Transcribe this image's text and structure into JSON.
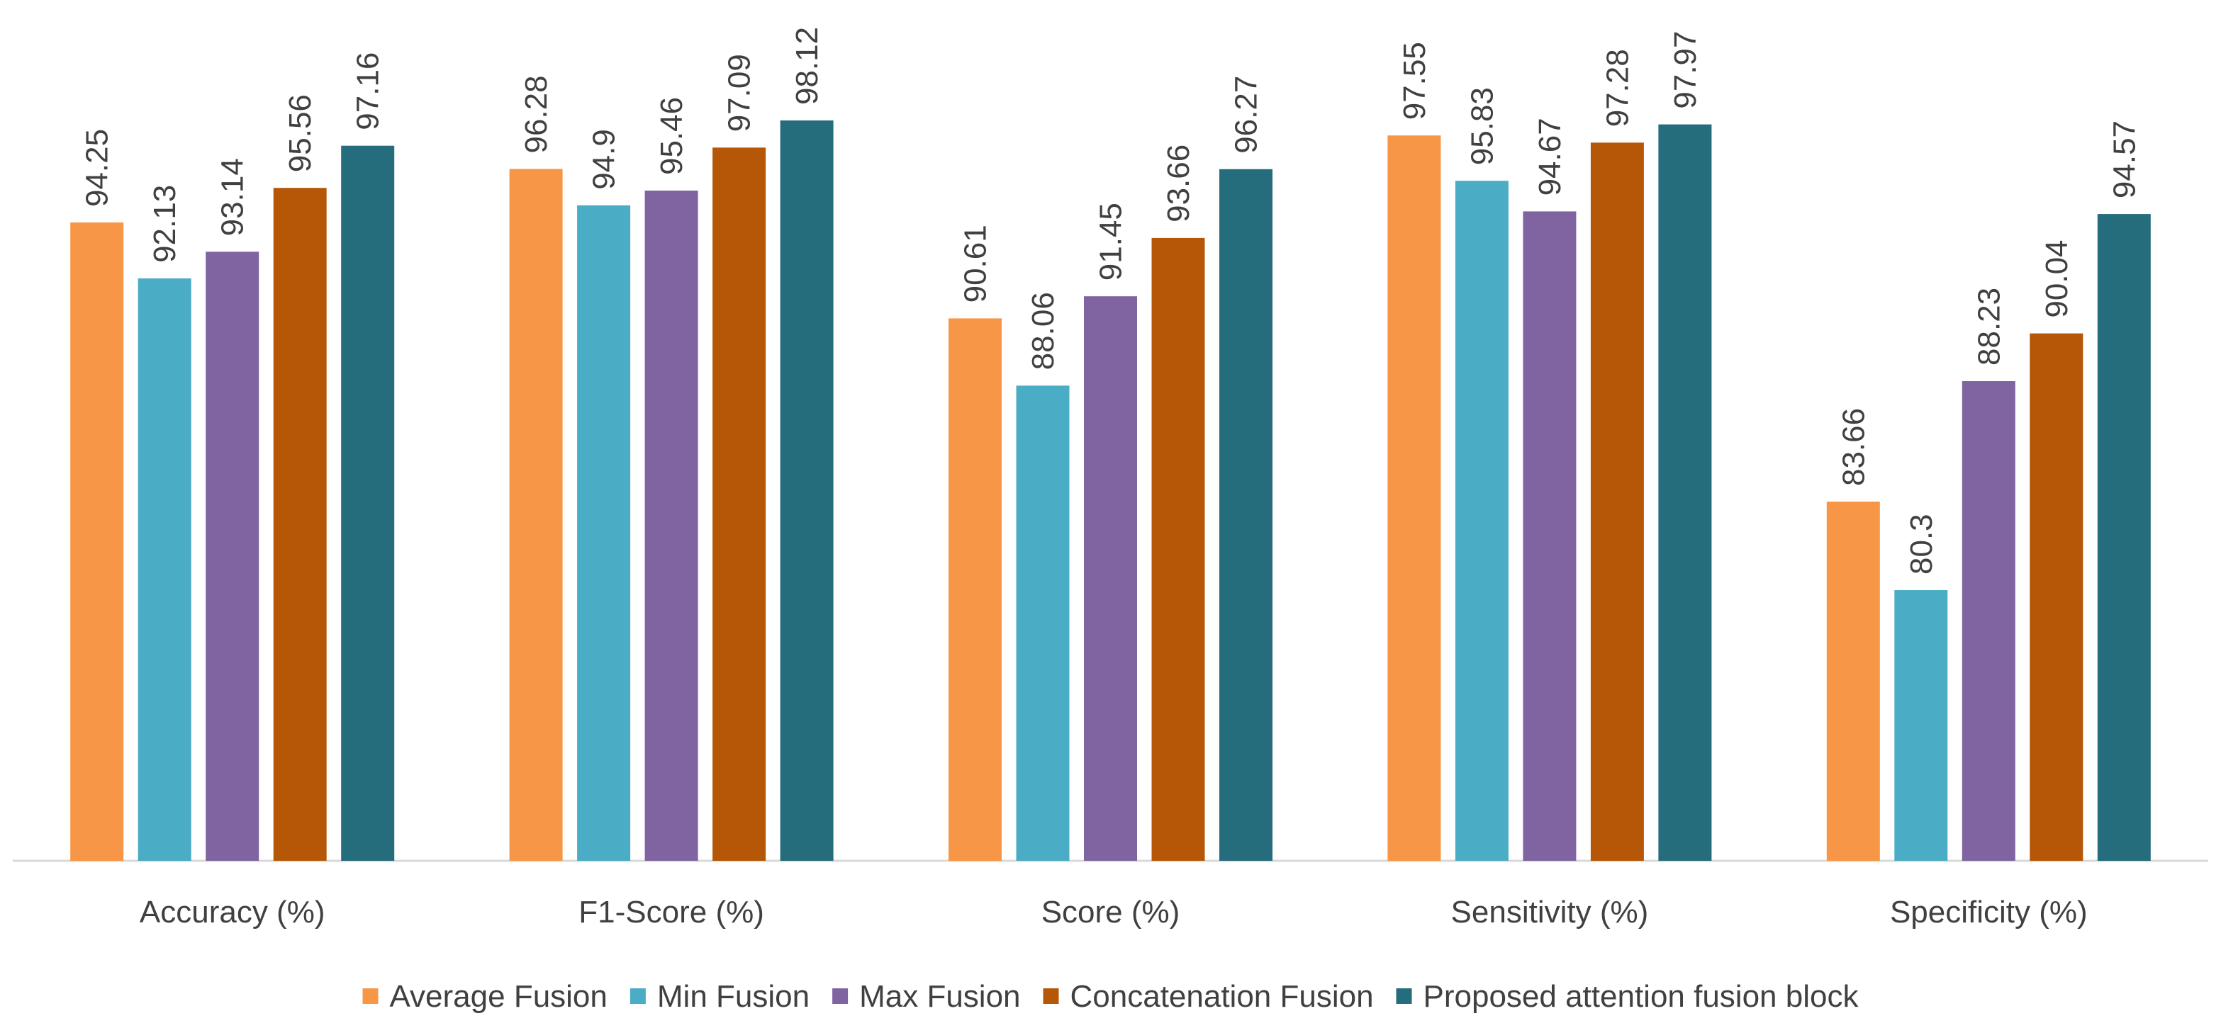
{
  "chart_data": {
    "type": "bar",
    "title": "",
    "xlabel": "",
    "ylabel": "",
    "ylim": [
      75,
      100
    ],
    "grid": false,
    "legend_position": "bottom",
    "categories": [
      "Accuracy (%)",
      "F1-Score (%)",
      "Score (%)",
      "Sensitivity (%)",
      "Specificity (%)"
    ],
    "series": [
      {
        "name": "Average Fusion",
        "color": "#F79646",
        "values": [
          94.25,
          96.28,
          90.61,
          97.55,
          83.66
        ],
        "labels": [
          "94.25",
          "96.28",
          "90.61",
          "97.55",
          "83.66"
        ]
      },
      {
        "name": "Min Fusion",
        "color": "#4BACC6",
        "values": [
          92.13,
          94.9,
          88.06,
          95.83,
          80.3
        ],
        "labels": [
          "92.13",
          "94.9",
          "88.06",
          "95.83",
          "80.3"
        ]
      },
      {
        "name": "Max Fusion",
        "color": "#8064A2",
        "values": [
          93.14,
          95.46,
          91.45,
          94.67,
          88.23
        ],
        "labels": [
          "93.14",
          "95.46",
          "91.45",
          "94.67",
          "88.23"
        ]
      },
      {
        "name": "Concatenation Fusion",
        "color": "#B65708",
        "values": [
          95.56,
          97.09,
          93.66,
          97.28,
          90.04
        ],
        "labels": [
          "95.56",
          "97.09",
          "93.66",
          "97.28",
          "90.04"
        ]
      },
      {
        "name": "Proposed attention fusion block",
        "color": "#256C7D",
        "values": [
          97.16,
          98.12,
          96.27,
          97.97,
          94.57
        ],
        "labels": [
          "97.16",
          "98.12",
          "96.27",
          "97.97",
          "94.57"
        ]
      }
    ]
  }
}
